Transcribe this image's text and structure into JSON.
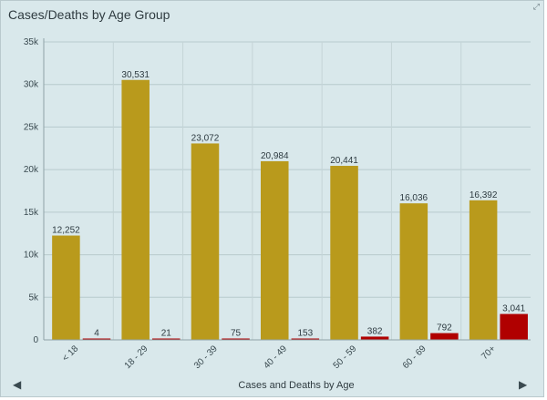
{
  "panel": {
    "title": "Cases/Deaths by Age Group",
    "expand_icon": "⤢",
    "nav_prev": "◀",
    "nav_next": "▶"
  },
  "chart_data": {
    "type": "bar",
    "categories": [
      "< 18",
      "18 - 29",
      "30 - 39",
      "40 - 49",
      "50 - 59",
      "60 - 69",
      "70+"
    ],
    "series": [
      {
        "values": [
          12252,
          30531,
          23072,
          20984,
          20441,
          16036,
          16392
        ],
        "color": "#b99a1c"
      },
      {
        "values": [
          4,
          21,
          75,
          153,
          382,
          792,
          3041
        ],
        "color": "#b00000"
      }
    ],
    "data_labels": [
      [
        "12,252",
        "30,531",
        "23,072",
        "20,984",
        "20,441",
        "16,036",
        "16,392"
      ],
      [
        "4",
        "21",
        "75",
        "153",
        "382",
        "792",
        "3,041"
      ]
    ],
    "y_ticks": [
      0,
      5000,
      10000,
      15000,
      20000,
      25000,
      30000,
      35000
    ],
    "y_tick_labels": [
      "0",
      "5k",
      "10k",
      "15k",
      "20k",
      "25k",
      "30k",
      "35k"
    ],
    "ylim": [
      0,
      35000
    ],
    "xlabel": "Cases and Deaths by Age",
    "ylabel": "",
    "grid": true,
    "legend": "none"
  }
}
